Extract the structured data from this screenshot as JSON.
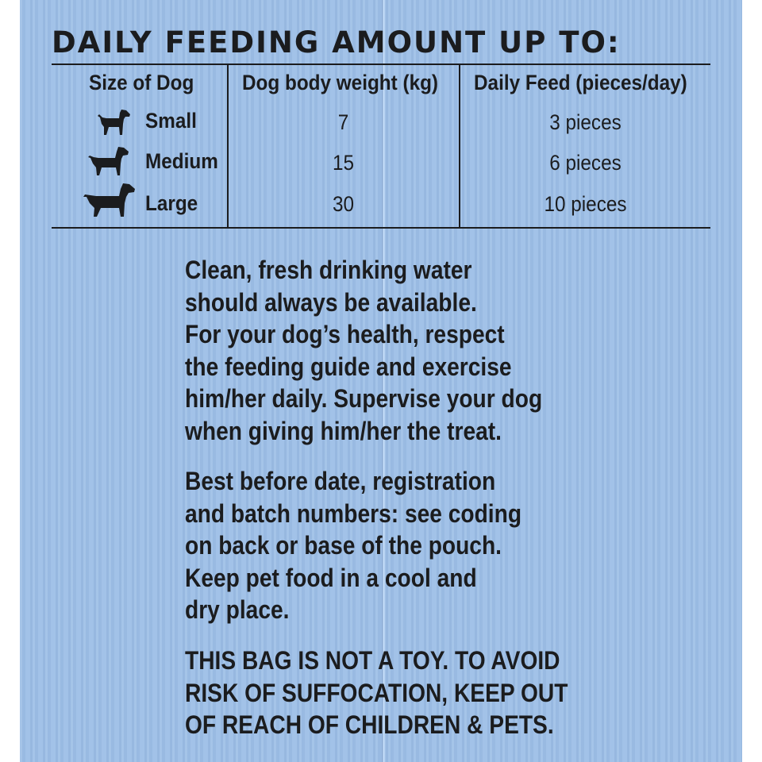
{
  "title": "DAILY FEEDING AMOUNT UP TO:",
  "table": {
    "headers": [
      "Size of Dog",
      "Dog body weight (kg)",
      "Daily Feed (pieces/day)"
    ],
    "rows": [
      {
        "size": "Small",
        "weight": "7",
        "feed": "3 pieces",
        "icon": "small-dog-icon"
      },
      {
        "size": "Medium",
        "weight": "15",
        "feed": "6 pieces",
        "icon": "medium-dog-icon"
      },
      {
        "size": "Large",
        "weight": "30",
        "feed": "10 pieces",
        "icon": "large-dog-icon"
      }
    ]
  },
  "paragraphs": {
    "water": [
      "Clean, fresh drinking water",
      "should always be available.",
      "For your dog’s health, respect",
      "the feeding guide and exercise",
      "him/her daily. Supervise your dog",
      "when giving him/her the treat."
    ],
    "storage": [
      "Best before date, registration",
      "and batch numbers: see coding",
      "on back or base of the pouch.",
      "Keep pet food in a cool and",
      "dry place."
    ],
    "warning": [
      "THIS BAG IS NOT A TOY. TO AVOID",
      "RISK OF SUFFOCATION, KEEP OUT",
      "OF REACH OF CHILDREN & PETS."
    ]
  },
  "colors": {
    "background": "#9fc0e7",
    "ink": "#1b1c1e"
  }
}
